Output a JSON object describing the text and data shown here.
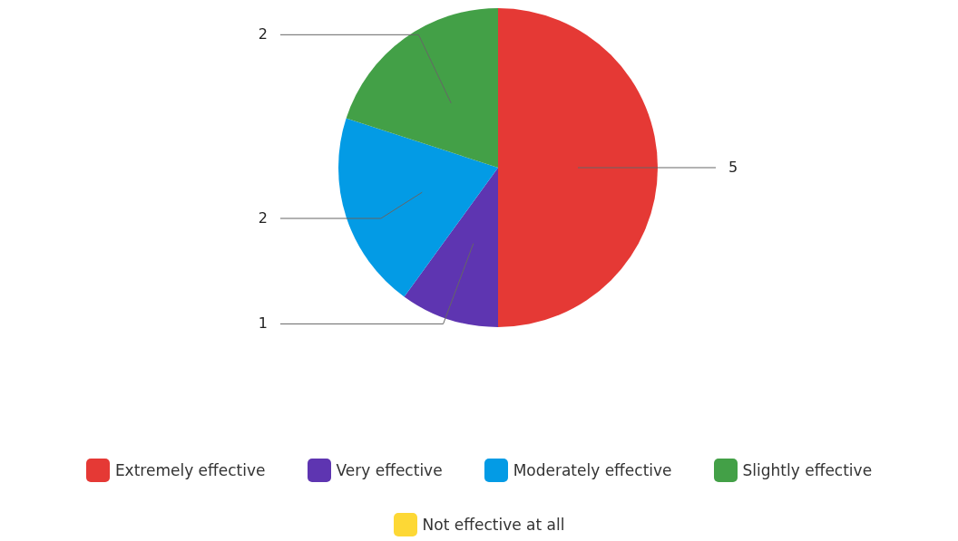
{
  "chart_data": {
    "type": "pie",
    "categories": [
      "Extremely effective",
      "Very effective",
      "Moderately effective",
      "Slightly effective",
      "Not effective at all"
    ],
    "values": [
      5,
      1,
      2,
      2,
      0
    ],
    "colors": [
      "#e53935",
      "#5e35b1",
      "#039be5",
      "#43a047",
      "#fdd835"
    ],
    "value_labels": [
      "5",
      "1",
      "2",
      "2",
      null
    ],
    "legend": "bottom"
  }
}
